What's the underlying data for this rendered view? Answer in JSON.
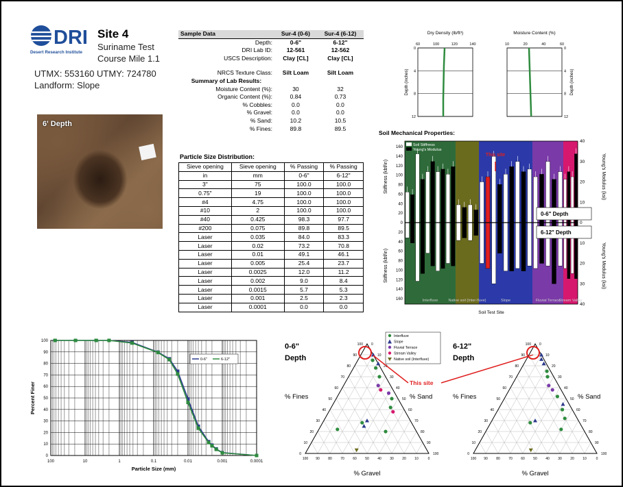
{
  "header": {
    "logo_text": "DRI",
    "logo_subtext": "Desert Research Institute",
    "site_title": "Site 4",
    "site_line1": "Suriname Test",
    "site_line2": "Course Mile 1.1",
    "utm": "UTMX: 553160  UTMY: 724780",
    "landform": "Landform:  Slope"
  },
  "photo": {
    "label": "6' Depth"
  },
  "sample_table": {
    "header": [
      "Sample Data",
      "Sur-4 (0-6)",
      "Sur-4 (6-12)"
    ],
    "rows": [
      {
        "label": "Depth:",
        "a": "0-6\"",
        "b": "6-12\""
      },
      {
        "label": "DRI Lab ID:",
        "a": "12-561",
        "b": "12-562"
      },
      {
        "label": "USCS Description:",
        "a": "Clay [CL]",
        "b": "Clay [CL]"
      },
      {
        "label": "NRCS Texture Class:",
        "a": "Silt Loam",
        "b": "Silt Loam"
      }
    ],
    "summary_title": "Summary of Lab Results:",
    "summary": [
      {
        "label": "Moisture Content (%):",
        "a": "30",
        "b": "32"
      },
      {
        "label": "Organic Content (%):",
        "a": "0.84",
        "b": "0.73"
      },
      {
        "label": "% Cobbles:",
        "a": "0.0",
        "b": "0.0"
      },
      {
        "label": "% Gravel:",
        "a": "0.0",
        "b": "0.0"
      },
      {
        "label": "% Sand:",
        "a": "10.2",
        "b": "10.5"
      },
      {
        "label": "% Fines:",
        "a": "89.8",
        "b": "89.5"
      }
    ]
  },
  "particle_table": {
    "title": "Particle Size Distribution:",
    "head1": [
      "Sieve opening",
      "Sieve opening",
      "% Passing",
      "% Passing"
    ],
    "head2": [
      "in",
      "mm",
      "0-6\"",
      "6-12\""
    ],
    "rows": [
      [
        "3\"",
        "75",
        "100.0",
        "100.0"
      ],
      [
        "0.75\"",
        "19",
        "100.0",
        "100.0"
      ],
      [
        "#4",
        "4.75",
        "100.0",
        "100.0"
      ],
      [
        "#10",
        "2",
        "100.0",
        "100.0"
      ],
      [
        "#40",
        "0.425",
        "98.3",
        "97.7"
      ],
      [
        "#200",
        "0.075",
        "89.8",
        "89.5"
      ],
      [
        "Laser",
        "0.035",
        "84.0",
        "83.3"
      ],
      [
        "Laser",
        "0.02",
        "73.2",
        "70.8"
      ],
      [
        "Laser",
        "0.01",
        "49.1",
        "46.1"
      ],
      [
        "Laser",
        "0.005",
        "25.4",
        "23.7"
      ],
      [
        "Laser",
        "0.0025",
        "12.0",
        "11.2"
      ],
      [
        "Laser",
        "0.002",
        "9.0",
        "8.4"
      ],
      [
        "Laser",
        "0.0015",
        "5.7",
        "5.3"
      ],
      [
        "Laser",
        "0.001",
        "2.5",
        "2.3"
      ],
      [
        "Laser",
        "0.0001",
        "0.0",
        "0.0"
      ]
    ]
  },
  "colors": {
    "green": "#2e8b3e",
    "navy": "#2c3a8c",
    "interfluve": "#2f6b3a",
    "native": "#6b6b1e",
    "slope": "#2b3aa8",
    "fluvial": "#7a3aa8",
    "stream": "#d6186e",
    "red": "#e02020"
  },
  "chart_data": [
    {
      "type": "line",
      "title": "Dry Density (lb/ft³)",
      "xticks": [
        "60",
        "100",
        "120",
        "140"
      ],
      "xlim": [
        60,
        140
      ],
      "ylabel": "Depth (inches)",
      "ylim": [
        0,
        12
      ],
      "yticks": [
        "0",
        "4",
        "8",
        "12"
      ],
      "series": [
        {
          "x": [
            99,
            98,
            97.5,
            97,
            97
          ],
          "y": [
            0,
            3,
            6,
            9,
            12
          ]
        }
      ]
    },
    {
      "type": "line",
      "title": "Moisture Content (%)",
      "xticks": [
        "10",
        "20",
        "40",
        "60"
      ],
      "xlim": [
        10,
        60
      ],
      "ylabel": "Depth (inches)",
      "ylim": [
        0,
        12
      ],
      "yticks": [
        "0",
        "4",
        "8",
        "12"
      ],
      "series": [
        {
          "x": [
            30,
            30.5,
            31,
            31.5,
            32
          ],
          "y": [
            0,
            3,
            6,
            9,
            12
          ]
        }
      ]
    },
    {
      "type": "bar",
      "title": "Soil Mechanical Properties:",
      "legend": [
        "Soil Stiffness",
        "Young's Modulus"
      ],
      "xlabel": "Soil Test Site",
      "ylabel_top": "Stiffness (kbf/in)",
      "ylabel_bottom": "Stiffness (kbf/in)",
      "y2label_top": "Young's Modulus (ksi)",
      "y2label_bottom": "Young's Modulus (ksi)",
      "left_ticks": [
        "160",
        "140",
        "120",
        "100",
        "80",
        "60",
        "40",
        "20",
        "0",
        "20",
        "40",
        "60",
        "80",
        "100",
        "120",
        "140",
        "160"
      ],
      "right_ticks": [
        "40",
        "30",
        "20",
        "10",
        "0",
        "10",
        "20",
        "30",
        "40"
      ],
      "regions": [
        {
          "name": "Interfluve",
          "bars": 10
        },
        {
          "name": "Native soil (Inter-fluve)",
          "bars": 4
        },
        {
          "name": "Slope",
          "bars": 9
        },
        {
          "name": "Fluvial Terrace",
          "bars": 5
        },
        {
          "name": "Stream Valley",
          "bars": 4
        }
      ],
      "depth_top": "0-6\" Depth",
      "depth_bottom": "6-12\" Depth",
      "annotation": "This site",
      "top_values": [
        60,
        55,
        135,
        85,
        100,
        120,
        100,
        105,
        95,
        110,
        35,
        30,
        35,
        25,
        80,
        90,
        130,
        75,
        95,
        110,
        120,
        100,
        105,
        90,
        95,
        120,
        85,
        100,
        85,
        100,
        90,
        135
      ],
      "bottom_values": [
        30,
        40,
        115,
        100,
        60,
        85,
        95,
        90,
        80,
        85,
        35,
        30,
        35,
        25,
        80,
        90,
        120,
        60,
        95,
        95,
        90,
        95,
        85,
        90,
        80,
        85,
        120,
        85,
        90,
        110,
        100,
        110
      ]
    },
    {
      "type": "line",
      "xlabel": "Particle Size (mm)",
      "ylabel": "Percent Finer",
      "xticks": [
        "100",
        "10",
        "1",
        "0.1",
        "0.01",
        "0.001",
        "0.0001"
      ],
      "yticks": [
        "0",
        "10",
        "20",
        "30",
        "40",
        "50",
        "60",
        "70",
        "80",
        "90",
        "100"
      ],
      "ylim": [
        0,
        100
      ],
      "legend": [
        "0-6\"",
        "6-12\""
      ],
      "series": [
        {
          "name": "0-6\"",
          "x": [
            75,
            19,
            4.75,
            2,
            0.425,
            0.075,
            0.035,
            0.02,
            0.01,
            0.005,
            0.0025,
            0.002,
            0.0015,
            0.001,
            0.0001
          ],
          "y": [
            100,
            100,
            100,
            100,
            98.3,
            89.8,
            84.0,
            73.2,
            49.1,
            25.4,
            12.0,
            9.0,
            5.7,
            2.5,
            0.0
          ]
        },
        {
          "name": "6-12\"",
          "x": [
            75,
            19,
            4.75,
            2,
            0.425,
            0.075,
            0.035,
            0.02,
            0.01,
            0.005,
            0.0025,
            0.002,
            0.0015,
            0.001,
            0.0001
          ],
          "y": [
            100,
            100,
            100,
            100,
            97.7,
            89.5,
            83.3,
            70.8,
            46.1,
            23.7,
            11.2,
            8.4,
            5.3,
            2.3,
            0.0
          ]
        }
      ]
    },
    {
      "type": "scatter",
      "title": "0-6\" Depth",
      "axes": [
        "% Fines",
        "% Sand",
        "% Gravel"
      ],
      "ticks": [
        "100",
        "90",
        "80",
        "70",
        "60",
        "50",
        "40",
        "30",
        "20",
        "10",
        "0"
      ],
      "legend": [
        "Interfluve",
        "Slope",
        "Fluvial Terrace",
        "Stream Valley",
        "Native soil (Interfluve)"
      ],
      "annotation": "This site",
      "points": [
        {
          "fines": 90,
          "sand": 10,
          "gravel": 0,
          "cls": "site"
        },
        {
          "fines": 85,
          "sand": 12,
          "gravel": 3,
          "cls": "Interfluve"
        },
        {
          "fines": 82,
          "sand": 18,
          "gravel": 0,
          "cls": "Slope"
        },
        {
          "fines": 78,
          "sand": 18,
          "gravel": 4,
          "cls": "Interfluve"
        },
        {
          "fines": 70,
          "sand": 25,
          "gravel": 5,
          "cls": "Interfluve"
        },
        {
          "fines": 62,
          "sand": 28,
          "gravel": 10,
          "cls": "Fluvial Terrace"
        },
        {
          "fines": 58,
          "sand": 32,
          "gravel": 10,
          "cls": "Stream Valley"
        },
        {
          "fines": 55,
          "sand": 40,
          "gravel": 5,
          "cls": "Fluvial Terrace"
        },
        {
          "fines": 50,
          "sand": 45,
          "gravel": 5,
          "cls": "Interfluve"
        },
        {
          "fines": 42,
          "sand": 48,
          "gravel": 10,
          "cls": "Interfluve"
        },
        {
          "fines": 38,
          "sand": 52,
          "gravel": 10,
          "cls": "Stream Valley"
        },
        {
          "fines": 30,
          "sand": 35,
          "gravel": 35,
          "cls": "Slope"
        },
        {
          "fines": 28,
          "sand": 32,
          "gravel": 40,
          "cls": "Interfluve"
        },
        {
          "fines": 25,
          "sand": 35,
          "gravel": 40,
          "cls": "Slope"
        },
        {
          "fines": 20,
          "sand": 55,
          "gravel": 25,
          "cls": "Interfluve"
        },
        {
          "fines": 22,
          "sand": 15,
          "gravel": 63,
          "cls": "Interfluve"
        },
        {
          "fines": 3,
          "sand": 40,
          "gravel": 57,
          "cls": "Native soil (Interfluve)"
        }
      ]
    },
    {
      "type": "scatter",
      "title": "6-12\" Depth",
      "axes": [
        "% Fines",
        "% Sand",
        "% Gravel"
      ],
      "ticks": [
        "100",
        "90",
        "80",
        "70",
        "60",
        "50",
        "40",
        "30",
        "20",
        "10",
        "0"
      ],
      "points": [
        {
          "fines": 90,
          "sand": 10,
          "gravel": 0,
          "cls": "site"
        },
        {
          "fines": 86,
          "sand": 12,
          "gravel": 2,
          "cls": "Slope"
        },
        {
          "fines": 82,
          "sand": 16,
          "gravel": 2,
          "cls": "Slope"
        },
        {
          "fines": 75,
          "sand": 22,
          "gravel": 3,
          "cls": "Interfluve"
        },
        {
          "fines": 70,
          "sand": 25,
          "gravel": 5,
          "cls": "Interfluve"
        },
        {
          "fines": 62,
          "sand": 30,
          "gravel": 8,
          "cls": "Fluvial Terrace"
        },
        {
          "fines": 58,
          "sand": 35,
          "gravel": 7,
          "cls": "Fluvial Terrace"
        },
        {
          "fines": 52,
          "sand": 42,
          "gravel": 6,
          "cls": "Interfluve"
        },
        {
          "fines": 45,
          "sand": 50,
          "gravel": 5,
          "cls": "Slope"
        },
        {
          "fines": 40,
          "sand": 52,
          "gravel": 8,
          "cls": "Interfluve"
        },
        {
          "fines": 32,
          "sand": 58,
          "gravel": 10,
          "cls": "Interfluve"
        },
        {
          "fines": 30,
          "sand": 35,
          "gravel": 35,
          "cls": "Slope"
        },
        {
          "fines": 28,
          "sand": 32,
          "gravel": 40,
          "cls": "Interfluve"
        },
        {
          "fines": 22,
          "sand": 60,
          "gravel": 18,
          "cls": "Interfluve"
        },
        {
          "fines": 3,
          "sand": 45,
          "gravel": 52,
          "cls": "Native soil (Interfluve)"
        }
      ]
    }
  ]
}
